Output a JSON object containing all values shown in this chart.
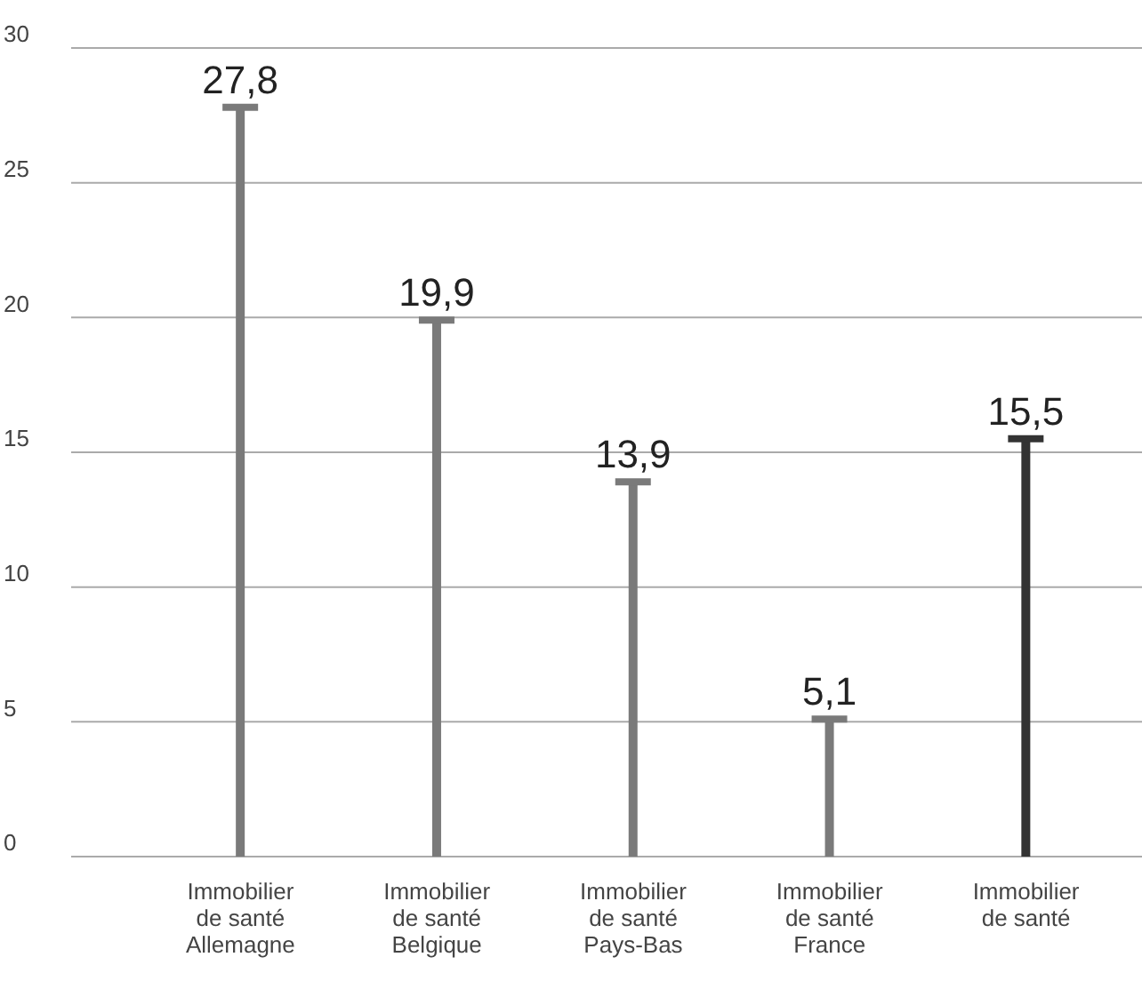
{
  "chart_data": {
    "type": "bar",
    "categories": [
      "Immobilier\nde santé\nAllemagne",
      "Immobilier\nde santé\nBelgique",
      "Immobilier\nde santé\nPays-Bas",
      "Immobilier\nde santé\nFrance",
      "Immobilier\nde santé"
    ],
    "values": [
      27.8,
      19.9,
      13.9,
      5.1,
      15.5
    ],
    "value_labels": [
      "27,8",
      "19,9",
      "13,9",
      "5,1",
      "15,5"
    ],
    "colors": [
      "#7a7a7a",
      "#7a7a7a",
      "#7a7a7a",
      "#7a7a7a",
      "#333333"
    ],
    "ylim": [
      0,
      30
    ],
    "yticks": [
      0,
      5,
      10,
      15,
      20,
      25,
      30
    ],
    "grid": "y"
  }
}
